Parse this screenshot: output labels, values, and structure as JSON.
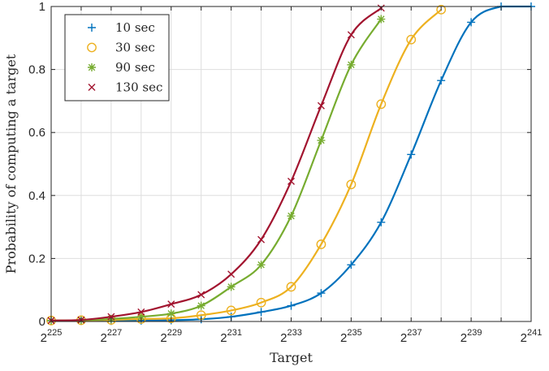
{
  "chart_data": {
    "type": "line",
    "title": "",
    "xlabel": "Target",
    "ylabel": "Probability of computing a target",
    "x_scale": "log2",
    "x_ticks": [
      {
        "base": "2",
        "exp": "225"
      },
      {
        "base": "2",
        "exp": "227"
      },
      {
        "base": "2",
        "exp": "229"
      },
      {
        "base": "2",
        "exp": "231"
      },
      {
        "base": "2",
        "exp": "233"
      },
      {
        "base": "2",
        "exp": "235"
      },
      {
        "base": "2",
        "exp": "237"
      },
      {
        "base": "2",
        "exp": "239"
      },
      {
        "base": "2",
        "exp": "241"
      }
    ],
    "x_tick_exponents": [
      225,
      227,
      229,
      231,
      233,
      235,
      237,
      239,
      241
    ],
    "y_ticks": [
      "0",
      "0.2",
      "0.4",
      "0.6",
      "0.8",
      "1"
    ],
    "y_tick_values": [
      0,
      0.2,
      0.4,
      0.6,
      0.8,
      1
    ],
    "xlim_exponent": [
      225,
      241
    ],
    "ylim": [
      0,
      1
    ],
    "grid": true,
    "legend_position": "top-left",
    "series": [
      {
        "name": "10 sec",
        "color": "#0072BD",
        "marker": "plus",
        "x_exponent": [
          225,
          226,
          227,
          228,
          229,
          230,
          231,
          232,
          233,
          234,
          235,
          236,
          237,
          238,
          239,
          240,
          241
        ],
        "y": [
          0.002,
          0.002,
          0.002,
          0.003,
          0.004,
          0.007,
          0.015,
          0.03,
          0.05,
          0.09,
          0.18,
          0.315,
          0.53,
          0.765,
          0.95,
          1.0,
          1.0
        ]
      },
      {
        "name": "30 sec",
        "color": "#EDB120",
        "marker": "circle",
        "x_exponent": [
          225,
          226,
          227,
          228,
          229,
          230,
          231,
          232,
          233,
          234,
          235,
          236,
          237,
          238
        ],
        "y": [
          0.003,
          0.004,
          0.005,
          0.008,
          0.01,
          0.02,
          0.035,
          0.06,
          0.11,
          0.245,
          0.435,
          0.69,
          0.895,
          0.99
        ]
      },
      {
        "name": "90 sec",
        "color": "#77AC30",
        "marker": "asterisk",
        "x_exponent": [
          225,
          226,
          227,
          228,
          229,
          230,
          231,
          232,
          233,
          234,
          235,
          236
        ],
        "y": [
          0.003,
          0.004,
          0.008,
          0.015,
          0.025,
          0.05,
          0.11,
          0.18,
          0.335,
          0.575,
          0.815,
          0.96
        ]
      },
      {
        "name": "130 sec",
        "color": "#A2142F",
        "marker": "cross",
        "x_exponent": [
          225,
          226,
          227,
          228,
          229,
          230,
          231,
          232,
          233,
          234,
          235,
          236
        ],
        "y": [
          0.003,
          0.005,
          0.015,
          0.03,
          0.055,
          0.085,
          0.15,
          0.26,
          0.445,
          0.685,
          0.91,
          0.995
        ]
      }
    ]
  }
}
